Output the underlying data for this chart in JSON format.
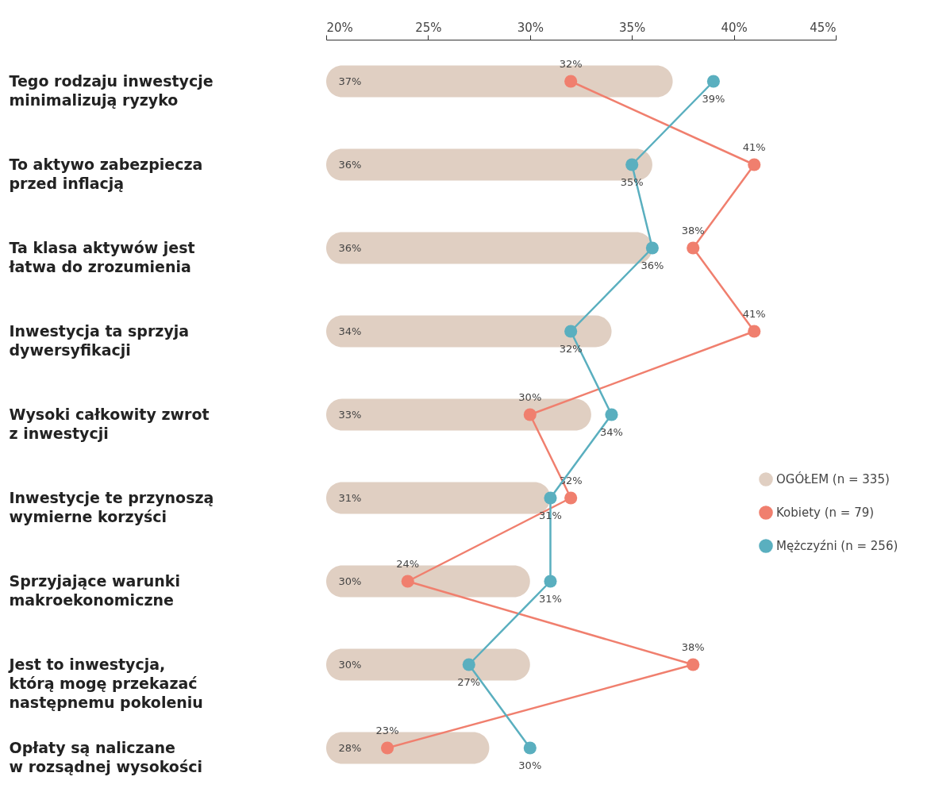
{
  "chart_data": {
    "type": "bar",
    "orientation": "horizontal",
    "categories": [
      "Tego rodzaju inwestycje\nminimalizują ryzyko",
      "To aktywo zabezpiecza\nprzed inflacją",
      "Ta klasa aktywów jest\nłatwa do zrozumienia",
      "Inwestycja ta sprzyja\ndywersyfikacji",
      "Wysoki całkowity zwrot\nz inwestycji",
      "Inwestycje te przynoszą\nwymierne korzyści",
      "Sprzyjające warunki\nmakroekonomiczne",
      "Jest to inwestycja,\nktórą mogę przekazać\nnastępnemu pokoleniu",
      "Opłaty są naliczane\nw rozsądnej wysokości"
    ],
    "xlim": [
      20,
      45
    ],
    "xticks": [
      {
        "value": 20,
        "label": "20%"
      },
      {
        "value": 25,
        "label": "25%"
      },
      {
        "value": 30,
        "label": "30%"
      },
      {
        "value": 35,
        "label": "35%"
      },
      {
        "value": 40,
        "label": "40%"
      },
      {
        "value": 45,
        "label": "45%"
      }
    ],
    "legend": "right",
    "series": [
      {
        "name": "OGÓŁEM (n = 335)",
        "color": "#e0cfc2",
        "values": [
          37,
          36,
          36,
          34,
          33,
          31,
          30,
          30,
          28
        ],
        "value_labels": [
          "37%",
          "36%",
          "36%",
          "34%",
          "33%",
          "31%",
          "30%",
          "30%",
          "28%"
        ]
      },
      {
        "name": "Kobiety (n = 79)",
        "type": "line",
        "marker": "circle",
        "color": "#f07f6e",
        "values": [
          32,
          41,
          38,
          41,
          30,
          32,
          24,
          38,
          23
        ],
        "value_labels": [
          "32%",
          "41%",
          "38%",
          "41%",
          "30%",
          "32%",
          "24%",
          "38%",
          "23%"
        ]
      },
      {
        "name": "Mężczyźni (n = 256)",
        "type": "line",
        "marker": "circle",
        "color": "#5aafbf",
        "values": [
          39,
          35,
          36,
          32,
          34,
          31,
          31,
          27,
          30
        ],
        "value_labels": [
          "39%",
          "35%",
          "36%",
          "32%",
          "34%",
          "31%",
          "31%",
          "27%",
          "30%"
        ]
      }
    ]
  }
}
